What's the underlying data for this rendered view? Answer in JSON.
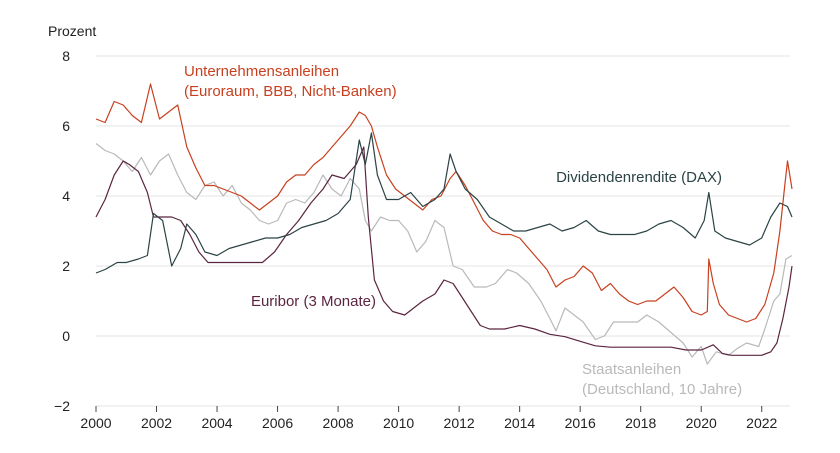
{
  "chart_data": {
    "type": "line",
    "ylabel": "Prozent",
    "xlim": [
      2000,
      2023
    ],
    "ylim": [
      -2,
      8
    ],
    "xticks": [
      "2000",
      "2002",
      "2004",
      "2006",
      "2008",
      "2010",
      "2012",
      "2014",
      "2016",
      "2018",
      "2020",
      "2022"
    ],
    "yticks": [
      "−2",
      "0",
      "2",
      "4",
      "6",
      "8"
    ],
    "grid": true,
    "series": [
      {
        "name": "Unternehmensanleihen (Euroraum, BBB, Nicht-Banken)",
        "label_lines": [
          "Unternehmensanleihen",
          "(Euroraum, BBB, Nicht-Banken)"
        ],
        "color": "#c8401f",
        "points": [
          [
            2000.0,
            6.2
          ],
          [
            2000.3,
            6.1
          ],
          [
            2000.6,
            6.7
          ],
          [
            2000.9,
            6.6
          ],
          [
            2001.2,
            6.3
          ],
          [
            2001.5,
            6.1
          ],
          [
            2001.8,
            7.2
          ],
          [
            2002.1,
            6.2
          ],
          [
            2002.4,
            6.4
          ],
          [
            2002.7,
            6.6
          ],
          [
            2003.0,
            5.4
          ],
          [
            2003.3,
            4.8
          ],
          [
            2003.6,
            4.3
          ],
          [
            2003.9,
            4.3
          ],
          [
            2004.2,
            4.2
          ],
          [
            2004.5,
            4.1
          ],
          [
            2004.8,
            4.0
          ],
          [
            2005.1,
            3.8
          ],
          [
            2005.4,
            3.6
          ],
          [
            2005.7,
            3.8
          ],
          [
            2006.0,
            4.0
          ],
          [
            2006.3,
            4.4
          ],
          [
            2006.6,
            4.6
          ],
          [
            2006.9,
            4.6
          ],
          [
            2007.2,
            4.9
          ],
          [
            2007.5,
            5.1
          ],
          [
            2007.8,
            5.4
          ],
          [
            2008.1,
            5.7
          ],
          [
            2008.4,
            6.0
          ],
          [
            2008.7,
            6.4
          ],
          [
            2008.9,
            6.3
          ],
          [
            2009.1,
            6.0
          ],
          [
            2009.3,
            5.4
          ],
          [
            2009.6,
            4.6
          ],
          [
            2009.9,
            4.2
          ],
          [
            2010.2,
            4.0
          ],
          [
            2010.5,
            3.8
          ],
          [
            2010.8,
            3.6
          ],
          [
            2011.1,
            3.9
          ],
          [
            2011.4,
            4.0
          ],
          [
            2011.7,
            4.5
          ],
          [
            2011.9,
            4.7
          ],
          [
            2012.2,
            4.3
          ],
          [
            2012.5,
            3.8
          ],
          [
            2012.8,
            3.3
          ],
          [
            2013.1,
            3.0
          ],
          [
            2013.4,
            2.9
          ],
          [
            2013.7,
            2.9
          ],
          [
            2014.0,
            2.8
          ],
          [
            2014.3,
            2.5
          ],
          [
            2014.6,
            2.2
          ],
          [
            2014.9,
            1.9
          ],
          [
            2015.2,
            1.4
          ],
          [
            2015.5,
            1.6
          ],
          [
            2015.8,
            1.7
          ],
          [
            2016.1,
            2.0
          ],
          [
            2016.4,
            1.8
          ],
          [
            2016.7,
            1.3
          ],
          [
            2017.0,
            1.5
          ],
          [
            2017.3,
            1.2
          ],
          [
            2017.6,
            1.0
          ],
          [
            2017.9,
            0.9
          ],
          [
            2018.2,
            1.0
          ],
          [
            2018.5,
            1.0
          ],
          [
            2018.8,
            1.2
          ],
          [
            2019.1,
            1.4
          ],
          [
            2019.4,
            1.1
          ],
          [
            2019.7,
            0.7
          ],
          [
            2020.0,
            0.6
          ],
          [
            2020.2,
            0.7
          ],
          [
            2020.25,
            2.2
          ],
          [
            2020.4,
            1.5
          ],
          [
            2020.6,
            0.9
          ],
          [
            2020.9,
            0.6
          ],
          [
            2021.2,
            0.5
          ],
          [
            2021.5,
            0.4
          ],
          [
            2021.8,
            0.5
          ],
          [
            2022.1,
            0.9
          ],
          [
            2022.4,
            1.8
          ],
          [
            2022.6,
            3.0
          ],
          [
            2022.75,
            4.2
          ],
          [
            2022.85,
            5.0
          ],
          [
            2023.0,
            4.2
          ]
        ]
      },
      {
        "name": "Dividendenrendite (DAX)",
        "label_lines": [
          "Dividendenrendite (DAX)"
        ],
        "color": "#2c4345",
        "points": [
          [
            2000.0,
            1.8
          ],
          [
            2000.3,
            1.9
          ],
          [
            2000.7,
            2.1
          ],
          [
            2001.0,
            2.1
          ],
          [
            2001.4,
            2.2
          ],
          [
            2001.7,
            2.3
          ],
          [
            2001.9,
            3.5
          ],
          [
            2002.2,
            3.3
          ],
          [
            2002.5,
            2.0
          ],
          [
            2002.8,
            2.5
          ],
          [
            2003.0,
            3.2
          ],
          [
            2003.3,
            2.9
          ],
          [
            2003.6,
            2.4
          ],
          [
            2004.0,
            2.3
          ],
          [
            2004.4,
            2.5
          ],
          [
            2004.8,
            2.6
          ],
          [
            2005.2,
            2.7
          ],
          [
            2005.6,
            2.8
          ],
          [
            2006.0,
            2.8
          ],
          [
            2006.4,
            2.9
          ],
          [
            2006.8,
            3.1
          ],
          [
            2007.2,
            3.2
          ],
          [
            2007.6,
            3.3
          ],
          [
            2008.0,
            3.5
          ],
          [
            2008.4,
            3.9
          ],
          [
            2008.7,
            5.6
          ],
          [
            2008.9,
            4.9
          ],
          [
            2009.1,
            5.8
          ],
          [
            2009.3,
            4.6
          ],
          [
            2009.6,
            3.9
          ],
          [
            2010.0,
            3.9
          ],
          [
            2010.4,
            4.1
          ],
          [
            2010.8,
            3.7
          ],
          [
            2011.2,
            3.9
          ],
          [
            2011.5,
            4.2
          ],
          [
            2011.7,
            5.2
          ],
          [
            2011.9,
            4.7
          ],
          [
            2012.2,
            4.2
          ],
          [
            2012.6,
            3.9
          ],
          [
            2013.0,
            3.4
          ],
          [
            2013.4,
            3.2
          ],
          [
            2013.8,
            3.0
          ],
          [
            2014.2,
            3.0
          ],
          [
            2014.6,
            3.1
          ],
          [
            2015.0,
            3.2
          ],
          [
            2015.4,
            3.0
          ],
          [
            2015.8,
            3.1
          ],
          [
            2016.2,
            3.3
          ],
          [
            2016.6,
            3.0
          ],
          [
            2017.0,
            2.9
          ],
          [
            2017.4,
            2.9
          ],
          [
            2017.8,
            2.9
          ],
          [
            2018.2,
            3.0
          ],
          [
            2018.6,
            3.2
          ],
          [
            2019.0,
            3.3
          ],
          [
            2019.4,
            3.1
          ],
          [
            2019.8,
            2.8
          ],
          [
            2020.1,
            3.3
          ],
          [
            2020.25,
            4.1
          ],
          [
            2020.45,
            3.0
          ],
          [
            2020.8,
            2.8
          ],
          [
            2021.2,
            2.7
          ],
          [
            2021.6,
            2.6
          ],
          [
            2022.0,
            2.8
          ],
          [
            2022.3,
            3.4
          ],
          [
            2022.6,
            3.8
          ],
          [
            2022.85,
            3.7
          ],
          [
            2023.0,
            3.4
          ]
        ]
      },
      {
        "name": "Euribor (3 Monate)",
        "label_lines": [
          "Euribor (3 Monate)"
        ],
        "color": "#5b2540",
        "points": [
          [
            2000.0,
            3.4
          ],
          [
            2000.3,
            3.9
          ],
          [
            2000.6,
            4.6
          ],
          [
            2000.9,
            5.0
          ],
          [
            2001.1,
            4.9
          ],
          [
            2001.4,
            4.7
          ],
          [
            2001.7,
            4.1
          ],
          [
            2001.9,
            3.4
          ],
          [
            2002.2,
            3.4
          ],
          [
            2002.5,
            3.4
          ],
          [
            2002.8,
            3.3
          ],
          [
            2003.1,
            2.9
          ],
          [
            2003.4,
            2.4
          ],
          [
            2003.7,
            2.1
          ],
          [
            2004.0,
            2.1
          ],
          [
            2004.5,
            2.1
          ],
          [
            2005.0,
            2.1
          ],
          [
            2005.5,
            2.1
          ],
          [
            2005.9,
            2.4
          ],
          [
            2006.3,
            2.9
          ],
          [
            2006.7,
            3.3
          ],
          [
            2007.1,
            3.8
          ],
          [
            2007.5,
            4.2
          ],
          [
            2007.8,
            4.6
          ],
          [
            2008.2,
            4.5
          ],
          [
            2008.6,
            4.9
          ],
          [
            2008.85,
            5.4
          ],
          [
            2009.0,
            3.4
          ],
          [
            2009.2,
            1.6
          ],
          [
            2009.5,
            1.0
          ],
          [
            2009.8,
            0.7
          ],
          [
            2010.2,
            0.6
          ],
          [
            2010.5,
            0.8
          ],
          [
            2010.8,
            1.0
          ],
          [
            2011.2,
            1.2
          ],
          [
            2011.5,
            1.6
          ],
          [
            2011.8,
            1.5
          ],
          [
            2012.1,
            1.1
          ],
          [
            2012.4,
            0.7
          ],
          [
            2012.7,
            0.3
          ],
          [
            2013.0,
            0.2
          ],
          [
            2013.5,
            0.2
          ],
          [
            2014.0,
            0.3
          ],
          [
            2014.5,
            0.2
          ],
          [
            2015.0,
            0.05
          ],
          [
            2015.5,
            -0.02
          ],
          [
            2016.0,
            -0.15
          ],
          [
            2016.5,
            -0.28
          ],
          [
            2017.0,
            -0.32
          ],
          [
            2018.0,
            -0.32
          ],
          [
            2019.0,
            -0.32
          ],
          [
            2019.5,
            -0.4
          ],
          [
            2020.0,
            -0.4
          ],
          [
            2020.4,
            -0.25
          ],
          [
            2020.7,
            -0.5
          ],
          [
            2021.0,
            -0.55
          ],
          [
            2021.5,
            -0.55
          ],
          [
            2022.0,
            -0.55
          ],
          [
            2022.3,
            -0.45
          ],
          [
            2022.5,
            -0.2
          ],
          [
            2022.7,
            0.5
          ],
          [
            2022.9,
            1.4
          ],
          [
            2023.0,
            2.0
          ]
        ]
      },
      {
        "name": "Staatsanleihen (Deutschland, 10 Jahre)",
        "label_lines": [
          "Staatsanleihen",
          "(Deutschland, 10 Jahre)"
        ],
        "color": "#b9b9b9",
        "points": [
          [
            2000.0,
            5.5
          ],
          [
            2000.3,
            5.3
          ],
          [
            2000.6,
            5.2
          ],
          [
            2000.9,
            5.0
          ],
          [
            2001.2,
            4.7
          ],
          [
            2001.5,
            5.1
          ],
          [
            2001.8,
            4.6
          ],
          [
            2002.1,
            5.0
          ],
          [
            2002.4,
            5.2
          ],
          [
            2002.7,
            4.6
          ],
          [
            2003.0,
            4.1
          ],
          [
            2003.3,
            3.9
          ],
          [
            2003.6,
            4.3
          ],
          [
            2003.9,
            4.4
          ],
          [
            2004.2,
            4.0
          ],
          [
            2004.5,
            4.3
          ],
          [
            2004.8,
            3.8
          ],
          [
            2005.1,
            3.6
          ],
          [
            2005.4,
            3.3
          ],
          [
            2005.7,
            3.2
          ],
          [
            2006.0,
            3.3
          ],
          [
            2006.3,
            3.8
          ],
          [
            2006.6,
            3.9
          ],
          [
            2006.9,
            3.8
          ],
          [
            2007.2,
            4.1
          ],
          [
            2007.5,
            4.6
          ],
          [
            2007.8,
            4.2
          ],
          [
            2008.1,
            4.0
          ],
          [
            2008.4,
            4.5
          ],
          [
            2008.7,
            4.2
          ],
          [
            2008.9,
            3.3
          ],
          [
            2009.1,
            3.0
          ],
          [
            2009.4,
            3.4
          ],
          [
            2009.7,
            3.3
          ],
          [
            2010.0,
            3.3
          ],
          [
            2010.3,
            3.0
          ],
          [
            2010.6,
            2.4
          ],
          [
            2010.9,
            2.7
          ],
          [
            2011.2,
            3.3
          ],
          [
            2011.5,
            3.1
          ],
          [
            2011.8,
            2.0
          ],
          [
            2012.1,
            1.9
          ],
          [
            2012.5,
            1.4
          ],
          [
            2012.9,
            1.4
          ],
          [
            2013.2,
            1.5
          ],
          [
            2013.6,
            1.9
          ],
          [
            2013.9,
            1.8
          ],
          [
            2014.3,
            1.5
          ],
          [
            2014.7,
            1.0
          ],
          [
            2015.0,
            0.5
          ],
          [
            2015.2,
            0.15
          ],
          [
            2015.5,
            0.8
          ],
          [
            2015.8,
            0.6
          ],
          [
            2016.1,
            0.4
          ],
          [
            2016.5,
            -0.1
          ],
          [
            2016.8,
            0.0
          ],
          [
            2017.1,
            0.4
          ],
          [
            2017.5,
            0.4
          ],
          [
            2017.9,
            0.4
          ],
          [
            2018.2,
            0.6
          ],
          [
            2018.6,
            0.4
          ],
          [
            2019.0,
            0.1
          ],
          [
            2019.4,
            -0.2
          ],
          [
            2019.7,
            -0.6
          ],
          [
            2020.0,
            -0.3
          ],
          [
            2020.2,
            -0.8
          ],
          [
            2020.5,
            -0.45
          ],
          [
            2020.9,
            -0.55
          ],
          [
            2021.2,
            -0.35
          ],
          [
            2021.5,
            -0.2
          ],
          [
            2021.9,
            -0.3
          ],
          [
            2022.1,
            0.2
          ],
          [
            2022.4,
            1.0
          ],
          [
            2022.6,
            1.2
          ],
          [
            2022.8,
            2.2
          ],
          [
            2023.0,
            2.3
          ]
        ]
      }
    ]
  }
}
